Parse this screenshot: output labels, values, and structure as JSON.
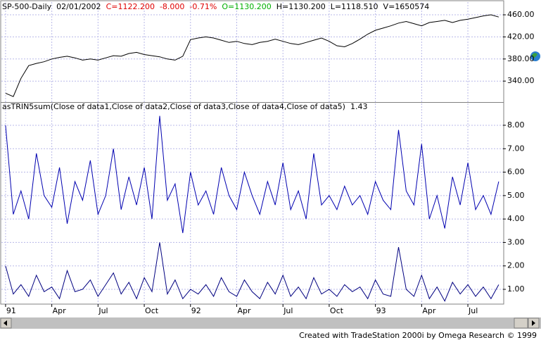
{
  "chart_data": [
    {
      "type": "line",
      "title": "SP-500-Daily",
      "header": [
        {
          "text": "02/01/2002",
          "color": "#000000"
        },
        {
          "text": "C=1122.200",
          "color": "#e00000"
        },
        {
          "text": "-8.000",
          "color": "#e00000"
        },
        {
          "text": "-0.71%",
          "color": "#e00000"
        },
        {
          "text": "O=1130.200",
          "color": "#00b000"
        },
        {
          "text": "H=1130.200",
          "color": "#000000"
        },
        {
          "text": "L=1118.510",
          "color": "#000000"
        },
        {
          "text": "V=1650574",
          "color": "#000000"
        }
      ],
      "x": [
        0,
        0.5,
        1,
        1.5,
        2,
        2.5,
        3,
        3.5,
        4,
        4.5,
        5,
        5.5,
        6,
        6.5,
        7,
        7.5,
        8,
        8.5,
        9,
        9.5,
        10,
        10.5,
        11,
        11.5,
        12,
        12.5,
        13,
        13.5,
        14,
        14.5,
        15,
        15.5,
        16,
        16.5,
        17,
        17.5,
        18,
        18.5,
        19,
        19.5,
        20,
        20.5,
        21,
        21.5,
        22,
        22.5,
        23,
        23.5,
        24,
        24.5,
        25,
        25.5,
        26,
        26.5,
        27,
        27.5,
        28,
        28.5,
        29,
        29.5,
        30,
        30.5,
        31,
        31.5,
        32
      ],
      "values": [
        318,
        312,
        345,
        368,
        372,
        375,
        380,
        383,
        385,
        382,
        378,
        380,
        378,
        382,
        386,
        385,
        390,
        392,
        388,
        386,
        384,
        380,
        378,
        385,
        415,
        418,
        420,
        418,
        414,
        410,
        412,
        408,
        406,
        410,
        412,
        416,
        412,
        408,
        406,
        410,
        414,
        418,
        412,
        404,
        402,
        408,
        416,
        425,
        432,
        436,
        440,
        445,
        448,
        444,
        440,
        446,
        448,
        450,
        446,
        450,
        452,
        455,
        458,
        460,
        456
      ],
      "color": "#000000",
      "xlim": [
        -0.27,
        32.28
      ],
      "ylim": [
        302,
        483
      ],
      "yticks": [
        {
          "value": 340,
          "label": "340.00"
        },
        {
          "value": 380,
          "label": "380.00"
        },
        {
          "value": 420,
          "label": "420.00"
        },
        {
          "value": 460,
          "label": "460.00"
        }
      ],
      "grid": true
    },
    {
      "type": "line",
      "title": "asTRIN5sum(Close of data1,Close of data2,Close of data3,Close of data4,Close of data5)",
      "current_value": 1.43,
      "x": [
        0,
        0.5,
        1,
        1.5,
        2,
        2.5,
        3,
        3.5,
        4,
        4.5,
        5,
        5.5,
        6,
        6.5,
        7,
        7.5,
        8,
        8.5,
        9,
        9.5,
        10,
        10.5,
        11,
        11.5,
        12,
        12.5,
        13,
        13.5,
        14,
        14.5,
        15,
        15.5,
        16,
        16.5,
        17,
        17.5,
        18,
        18.5,
        19,
        19.5,
        20,
        20.5,
        21,
        21.5,
        22,
        22.5,
        23,
        23.5,
        24,
        24.5,
        25,
        25.5,
        26,
        26.5,
        27,
        27.5,
        28,
        28.5,
        29,
        29.5,
        30,
        30.5,
        31,
        31.5,
        32
      ],
      "series": [
        {
          "color": "#0000b0",
          "values": [
            8.0,
            4.2,
            5.2,
            4.0,
            6.8,
            5.0,
            4.5,
            6.2,
            3.8,
            5.6,
            4.8,
            6.5,
            4.2,
            5.0,
            7.0,
            4.4,
            5.8,
            4.6,
            6.2,
            4.0,
            8.4,
            4.8,
            5.5,
            3.4,
            6.0,
            4.6,
            5.2,
            4.2,
            6.2,
            5.0,
            4.4,
            6.0,
            5.0,
            4.2,
            5.6,
            4.6,
            6.4,
            4.4,
            5.2,
            4.0,
            6.8,
            4.6,
            5.0,
            4.4,
            5.4,
            4.6,
            5.0,
            4.2,
            5.6,
            4.8,
            4.4,
            7.8,
            5.2,
            4.6,
            7.2,
            4.0,
            5.0,
            3.6,
            5.8,
            4.6,
            6.4,
            4.4,
            5.0,
            4.2,
            5.6
          ]
        },
        {
          "color": "#000080",
          "values": [
            2.0,
            0.8,
            1.2,
            0.7,
            1.6,
            0.9,
            1.1,
            0.6,
            1.8,
            0.9,
            1.0,
            1.4,
            0.7,
            1.2,
            1.7,
            0.8,
            1.3,
            0.6,
            1.5,
            0.9,
            3.0,
            0.8,
            1.4,
            0.6,
            1.0,
            0.8,
            1.2,
            0.7,
            1.5,
            0.9,
            0.7,
            1.4,
            0.9,
            0.6,
            1.3,
            0.8,
            1.6,
            0.7,
            1.1,
            0.6,
            1.5,
            0.8,
            1.0,
            0.7,
            1.2,
            0.9,
            1.1,
            0.6,
            1.4,
            0.8,
            0.7,
            2.8,
            1.0,
            0.7,
            1.6,
            0.6,
            1.1,
            0.5,
            1.3,
            0.8,
            1.2,
            0.7,
            1.1,
            0.6,
            1.2
          ]
        }
      ],
      "xlim": [
        -0.27,
        32.28
      ],
      "ylim": [
        0.37,
        8.93
      ],
      "xticks": [
        {
          "value": 0,
          "label": "91"
        },
        {
          "value": 3,
          "label": "Apr"
        },
        {
          "value": 6,
          "label": "Jul"
        },
        {
          "value": 9,
          "label": "Oct"
        },
        {
          "value": 12,
          "label": "92"
        },
        {
          "value": 15,
          "label": "Apr"
        },
        {
          "value": 18,
          "label": "Jul"
        },
        {
          "value": 21,
          "label": "Oct"
        },
        {
          "value": 24,
          "label": "93"
        },
        {
          "value": 27,
          "label": "Apr"
        },
        {
          "value": 30,
          "label": "Jul"
        }
      ],
      "yticks": [
        {
          "value": 1,
          "label": "1.00"
        },
        {
          "value": 2,
          "label": "2.00"
        },
        {
          "value": 3,
          "label": "3.00"
        },
        {
          "value": 4,
          "label": "4.00"
        },
        {
          "value": 5,
          "label": "5.00"
        },
        {
          "value": 6,
          "label": "6.00"
        },
        {
          "value": 7,
          "label": "7.00"
        },
        {
          "value": 8,
          "label": "8.00"
        }
      ],
      "grid": true
    }
  ],
  "footer": "Created with TradeStation 2000i by Omega Research © 1999"
}
